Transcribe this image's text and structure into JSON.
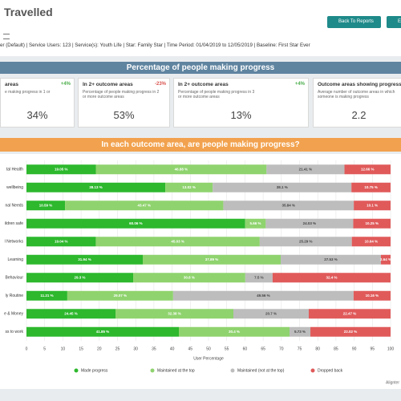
{
  "header": {
    "title": "Travelled",
    "buttons": [
      "Back To Reports",
      "E"
    ]
  },
  "filters": "er (Default) | Service Users: 123 | Service(s): Youth Life | Star: Family Star | Time Period: 01/04/2019 to 12/05/2019 | Baseline: First Star Ever",
  "progress": {
    "title": "Percentage of people making progress",
    "cards": [
      {
        "title": "areas",
        "change": "+4%",
        "description": "e making progress in 1 or",
        "value": "34%"
      },
      {
        "title": "In 2+ outcome areas",
        "change": "-23%",
        "description": "Percentage of people making progress in 2 or more outcome areas",
        "value": "53%"
      },
      {
        "title": "In 2+ outcome areas",
        "change": "+4%",
        "description": "Percentage of people making progress in 3 or more outcome areas",
        "value": "13%"
      },
      {
        "title": "Outcome areas showing progress",
        "description": "Average number of outcome areas in which someone is making progress",
        "value": "2.2"
      }
    ]
  },
  "chart_data": {
    "type": "stacked_barh",
    "title": "In each outcome area, are people making progress?",
    "categories": [
      "tal Health",
      "wellbeing",
      "nal Needs",
      "ildren safe",
      "l Networks",
      "Learning",
      "Behaviour",
      "ly Routine",
      "e & Money",
      "ss to work"
    ],
    "series": [
      {
        "name": "Made progress",
        "color": "#2db82d",
        "values": [
          19.05,
          38.13,
          10.59,
          60.06,
          19.04,
          31.94,
          29.3,
          11.21,
          24.45,
          41.85
        ],
        "value_labels": [
          "19.05 %",
          "38.13 %",
          "10.59 %",
          "60.06 %",
          "19.04 %",
          "31.94 %",
          "29.3 %",
          "11.21 %",
          "24.45 %",
          "41.85 %"
        ]
      },
      {
        "name": "Maintained at the top",
        "color": "#8fd36e",
        "values": [
          46.88,
          13.02,
          43.47,
          5.66,
          45.03,
          37.89,
          30.8,
          29.07,
          32.38,
          30.4
        ],
        "value_labels": [
          "46.88 %",
          "13.02 %",
          "43.47 %",
          "5.66 %",
          "45.03 %",
          "37.89 %",
          "30.8 %",
          "29.07 %",
          "32.38 %",
          "30.4 %"
        ]
      },
      {
        "name": "Maintained (not at the top)",
        "color": "#bdbdbd",
        "values": [
          21.41,
          38.1,
          35.84,
          24.03,
          25.29,
          27.53,
          7.5,
          49.56,
          20.7,
          5.73
        ],
        "value_labels": [
          "21.41 %",
          "38.1 %",
          "35.84 %",
          "24.03 %",
          "25.29 %",
          "27.53 %",
          "7.5 %",
          "49.56 %",
          "20.7 %",
          "5.73 %"
        ]
      },
      {
        "name": "Dropped back",
        "color": "#e05a5a",
        "values": [
          12.66,
          10.75,
          10.1,
          10.25,
          10.64,
          2.64,
          32.4,
          10.16,
          22.47,
          22.02
        ],
        "value_labels": [
          "12.66 %",
          "10.75 %",
          "10.1 %",
          "10.25 %",
          "10.64 %",
          "2.64 %",
          "32.4 %",
          "10.16 %",
          "22.47 %",
          "22.02 %"
        ]
      }
    ],
    "xlabel": "User Percentage",
    "xlim": [
      0,
      100
    ],
    "xticks": [
      0,
      5,
      10,
      15,
      20,
      25,
      30,
      35,
      40,
      45,
      50,
      55,
      60,
      65,
      70,
      75,
      80,
      85,
      90,
      95,
      100
    ],
    "grid": true
  },
  "footer": "Alignter"
}
